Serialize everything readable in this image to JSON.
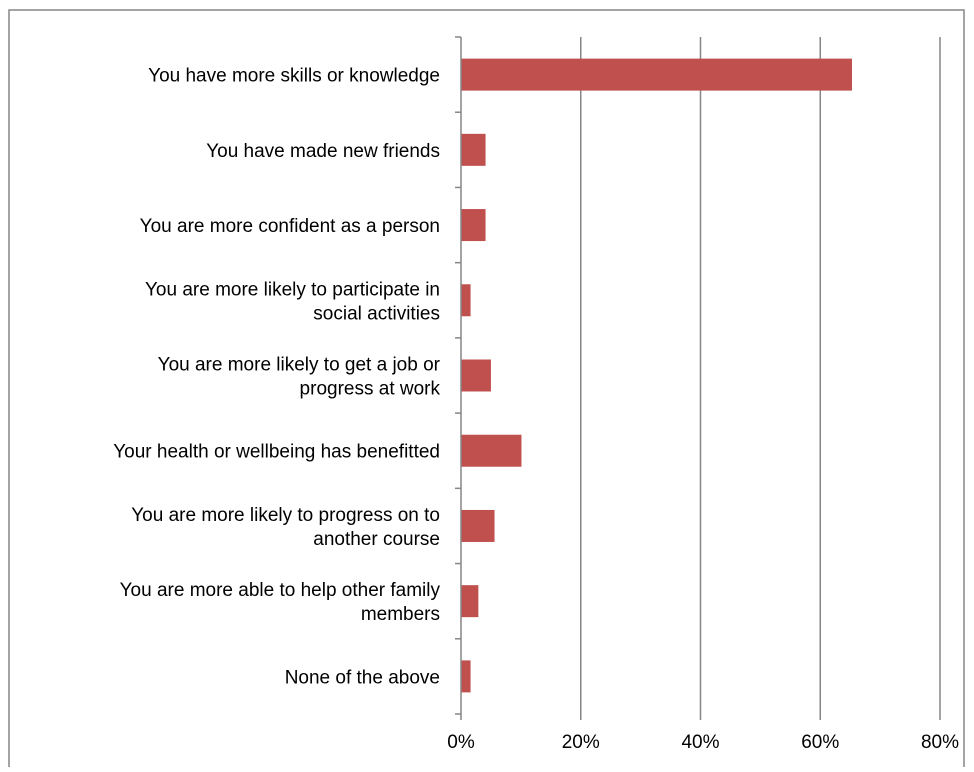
{
  "chart_data": {
    "type": "bar",
    "orientation": "horizontal",
    "categories": [
      "You have more skills or knowledge",
      "You have made new friends",
      "You are more confident as a person",
      "You are more likely to participate in social activities",
      "You are more likely to get a job or progress at work",
      "Your health or wellbeing has benefitted",
      "You are more likely to progress on to another course",
      "You are more able to help other family members",
      "None of the above"
    ],
    "category_label_lines": [
      [
        "You have more skills or knowledge"
      ],
      [
        "You have made new friends"
      ],
      [
        "You are more confident as a person"
      ],
      [
        "You are more likely to participate in",
        "social activities"
      ],
      [
        "You are more likely to get a job or",
        "progress at work"
      ],
      [
        "Your health or wellbeing has benefitted"
      ],
      [
        "You are more likely to progress on to",
        "another course"
      ],
      [
        "You are more able to help other family",
        "members"
      ],
      [
        "None of the above"
      ]
    ],
    "values": [
      65.3,
      4.1,
      4.1,
      1.6,
      5.0,
      10.1,
      5.6,
      2.9,
      1.6
    ],
    "xlim": [
      0,
      80
    ],
    "xticks": [
      0,
      20,
      40,
      60,
      80
    ],
    "xtick_labels": [
      "0%",
      "20%",
      "40%",
      "60%",
      "80%"
    ],
    "value_unit": "%",
    "title": "",
    "xlabel": "",
    "ylabel": "",
    "grid": "vertical",
    "legend": "none",
    "bar_color": "#c0504d",
    "gridline_color": "#868686",
    "border_color": "#868686"
  }
}
